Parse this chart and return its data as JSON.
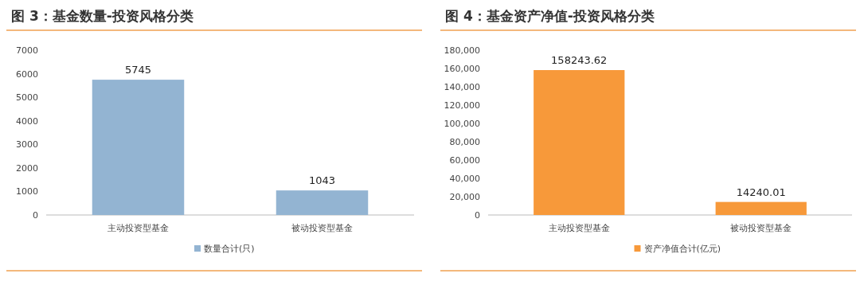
{
  "chart_data": [
    {
      "type": "bar",
      "title": "图 3：基金数量-投资风格分类",
      "categories": [
        "主动投资型基金",
        "被动投资型基金"
      ],
      "series": [
        {
          "name": "数量合计(只)",
          "color": "#93b4d2",
          "values": [
            5745,
            1043
          ]
        }
      ],
      "ylim": [
        0,
        7000
      ],
      "yticks": [
        0,
        1000,
        2000,
        3000,
        4000,
        5000,
        6000,
        7000
      ],
      "data_labels": true,
      "legend": "bottom"
    },
    {
      "type": "bar",
      "title": "图 4：基金资产净值-投资风格分类",
      "categories": [
        "主动投资型基金",
        "被动投资型基金"
      ],
      "series": [
        {
          "name": "资产净值合计(亿元)",
          "color": "#f7993a",
          "values": [
            158243.62,
            14240.01
          ]
        }
      ],
      "ylim": [
        0,
        180000
      ],
      "yticks": [
        0,
        {
          "value": 20000,
          "label": "20,000"
        },
        {
          "value": 40000,
          "label": "40,000"
        },
        {
          "value": 60000,
          "label": "60,000"
        },
        {
          "value": 80000,
          "label": "80,000"
        },
        {
          "value": 100000,
          "label": "100,000"
        },
        {
          "value": 120000,
          "label": "120,000"
        },
        {
          "value": 140000,
          "label": "140,000"
        },
        {
          "value": 160000,
          "label": "160,000"
        },
        {
          "value": 180000,
          "label": "180,000"
        }
      ],
      "data_labels": true,
      "legend": "bottom"
    }
  ]
}
